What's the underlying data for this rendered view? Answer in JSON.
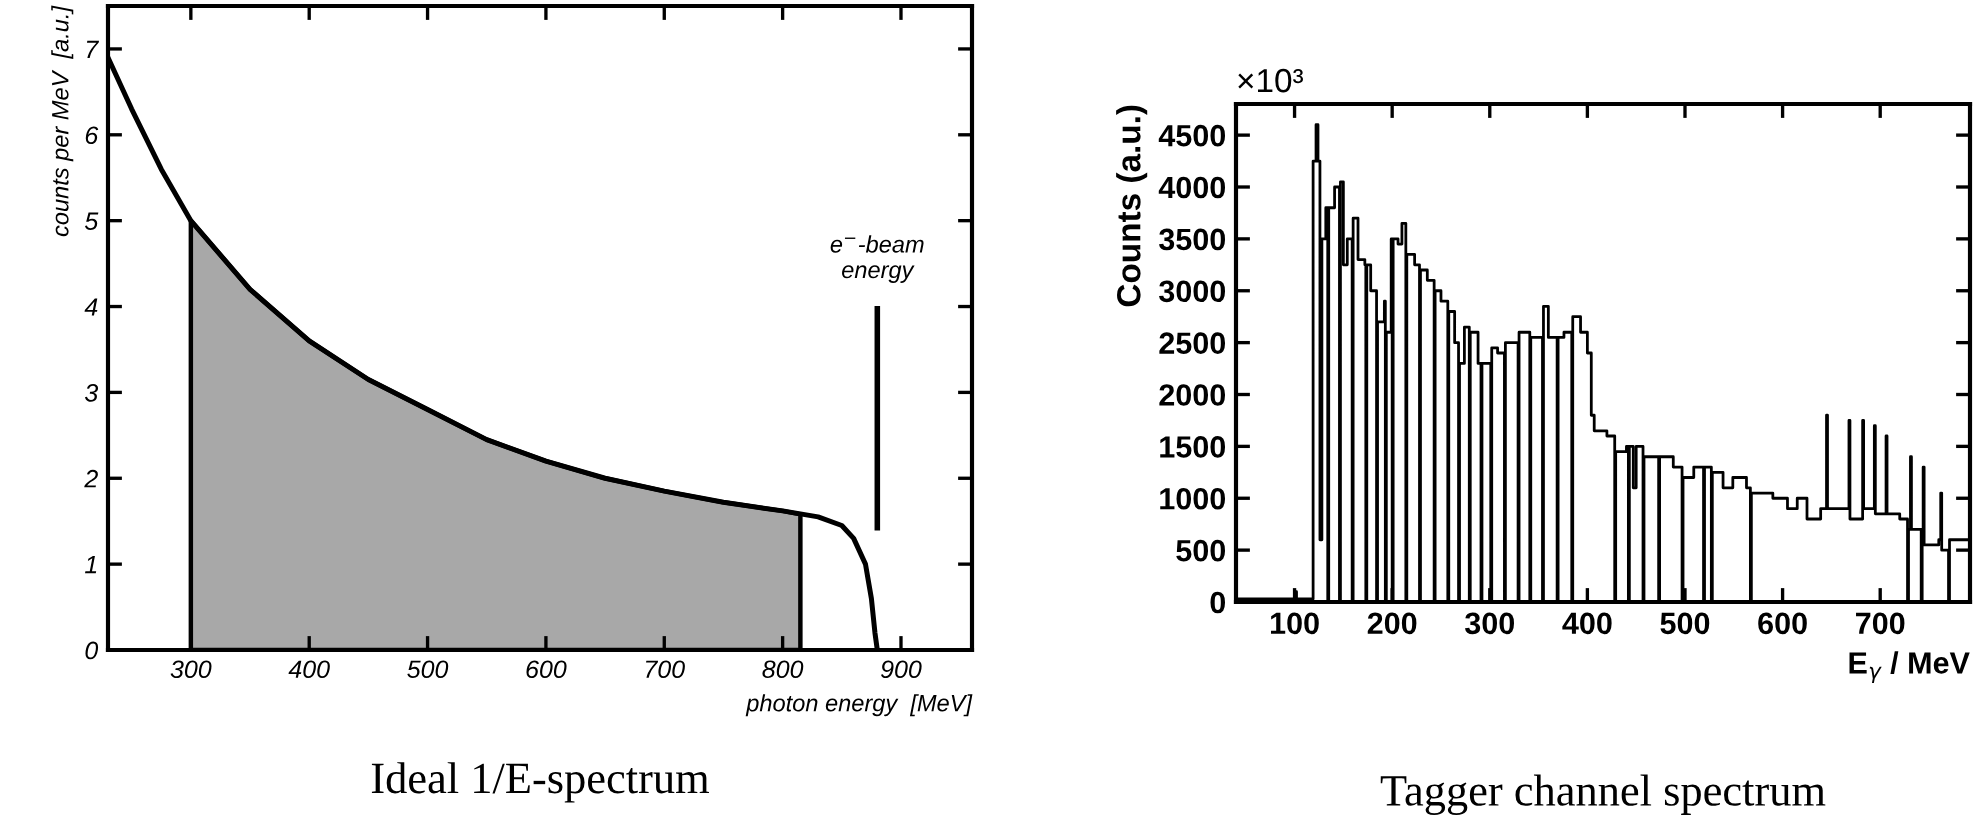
{
  "chart_data": [
    {
      "type": "line",
      "title": "Ideal 1/E-spectrum",
      "xlabel": "photon energy  [MeV]",
      "ylabel": "counts per MeV  [a.u.]",
      "xlim": [
        230,
        960
      ],
      "xticks": [
        300,
        400,
        500,
        600,
        700,
        800,
        900
      ],
      "ylim": [
        0,
        7.5
      ],
      "yticks": [
        0,
        1,
        2,
        3,
        4,
        5,
        6,
        7
      ],
      "grid": false,
      "series": [
        {
          "type": "area",
          "color": "#a8a8a8",
          "x": [
            300,
            350,
            400,
            450,
            500,
            550,
            600,
            650,
            700,
            750,
            800,
            815
          ],
          "values": [
            5.0,
            4.2,
            3.6,
            3.15,
            2.8,
            2.45,
            2.2,
            2.0,
            1.85,
            1.72,
            1.62,
            1.58
          ]
        },
        {
          "type": "line",
          "color": "#000000",
          "x": [
            230,
            250,
            275,
            300,
            350,
            400,
            450,
            500,
            550,
            600,
            650,
            700,
            750,
            800,
            830,
            850,
            860,
            870,
            875,
            878,
            880
          ],
          "values": [
            6.9,
            6.3,
            5.6,
            5.0,
            4.2,
            3.6,
            3.15,
            2.8,
            2.45,
            2.2,
            2.0,
            1.85,
            1.72,
            1.62,
            1.55,
            1.45,
            1.3,
            1.0,
            0.6,
            0.2,
            0
          ]
        }
      ],
      "ref_lines": [
        {
          "axis": "x",
          "value": 880,
          "label": "e$^{−}$-beam\nenergy",
          "color": "#000000"
        }
      ]
    },
    {
      "type": "step",
      "title": "Tagger channel spectrum",
      "xlabel": "E$_{γ}$ / MeV",
      "ylabel": "Counts (a.u.)",
      "annotations": [
        "×10³"
      ],
      "xlim": [
        40,
        792
      ],
      "xticks": [
        100,
        200,
        300,
        400,
        500,
        600,
        700
      ],
      "ylim": [
        0,
        4800
      ],
      "yticks": [
        0,
        500,
        1000,
        1500,
        2000,
        2500,
        3000,
        3500,
        4000,
        4500
      ],
      "grid": false,
      "series": [
        {
          "color": "#000000",
          "x": [
            40,
            95,
            100,
            102,
            119,
            122,
            124,
            126,
            128,
            132,
            134,
            135,
            141,
            146,
            147,
            150,
            154,
            159,
            160,
            165,
            172,
            173,
            174,
            178,
            184,
            185,
            192,
            193,
            194,
            199,
            200,
            201,
            206,
            210,
            214,
            215,
            223,
            228,
            229,
            236,
            243,
            244,
            250,
            257,
            258,
            264,
            268,
            269,
            274,
            279,
            280,
            288,
            291,
            292,
            301,
            302,
            308,
            315,
            316,
            322,
            329,
            330,
            341,
            342,
            354,
            355,
            360,
            369,
            370,
            376,
            384,
            385,
            393,
            400,
            404,
            407,
            420,
            428,
            429,
            440,
            442,
            443,
            447,
            450,
            457,
            458,
            473,
            474,
            488,
            497,
            498,
            509,
            519,
            520,
            527,
            528,
            539,
            549,
            563,
            567,
            568,
            590,
            605,
            615,
            625,
            639,
            645,
            646,
            652,
            668,
            669,
            682,
            683,
            694,
            695,
            706,
            707,
            720,
            728,
            729,
            731,
            732,
            742,
            743,
            744,
            745,
            760,
            762,
            763,
            770,
            771,
            790
          ],
          "values": [
            30,
            30,
            100,
            30,
            4250,
            4600,
            4250,
            600,
            3500,
            3800,
            0,
            3800,
            4000,
            0,
            4050,
            3250,
            3500,
            0,
            3700,
            3300,
            3250,
            0,
            3250,
            3000,
            0,
            2700,
            2900,
            0,
            2600,
            3500,
            0,
            3500,
            3450,
            3650,
            0,
            3350,
            3250,
            0,
            3200,
            3100,
            0,
            3000,
            2900,
            0,
            2800,
            2500,
            0,
            2300,
            2650,
            0,
            2600,
            2300,
            0,
            2300,
            0,
            2450,
            2400,
            0,
            2500,
            2500,
            0,
            2600,
            0,
            2550,
            0,
            2850,
            2550,
            0,
            2550,
            2600,
            0,
            2750,
            2600,
            2400,
            1800,
            1650,
            1600,
            0,
            1450,
            1500,
            0,
            1500,
            1100,
            1500,
            0,
            1400,
            0,
            1400,
            1300,
            0,
            1200,
            1300,
            0,
            1300,
            0,
            1250,
            1100,
            1200,
            1100,
            0,
            1050,
            1000,
            900,
            1000,
            800,
            900,
            1800,
            900,
            900,
            1750,
            800,
            1750,
            900,
            1700,
            850,
            1600,
            850,
            800,
            0,
            700,
            1400,
            700,
            0,
            550,
            1300,
            550,
            600,
            1050,
            500,
            0,
            600,
            600
          ]
        }
      ]
    }
  ]
}
